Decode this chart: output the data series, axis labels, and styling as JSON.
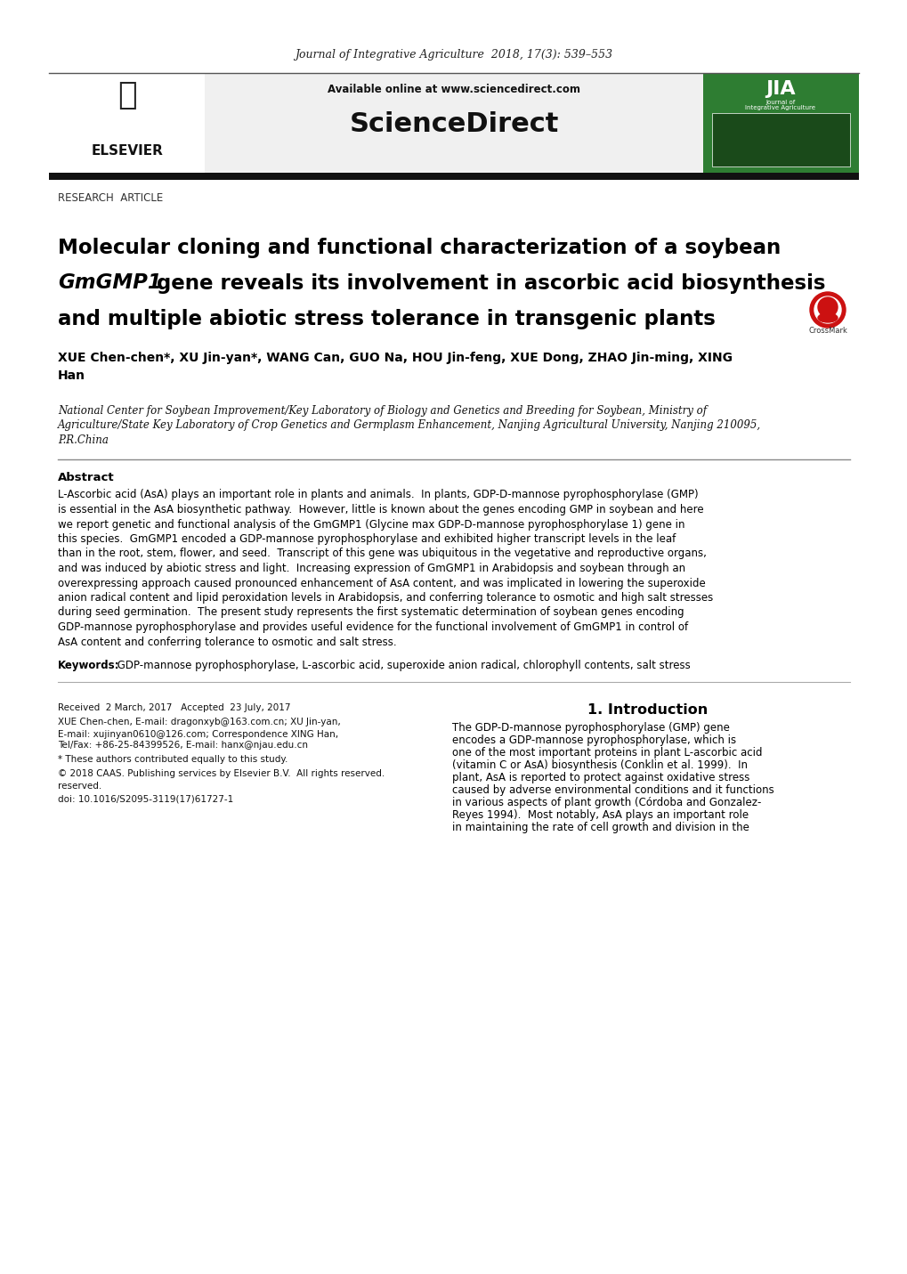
{
  "journal_line": "Journal of Integrative Agriculture  2018, 17(3): 539–553",
  "available_online": "Available online at www.sciencedirect.com",
  "sciencedirect_text": "ScienceDirect",
  "section_label": "RESEARCH  ARTICLE",
  "title_part1": "Molecular cloning and functional characterization of a soybean",
  "title_part2_italic": "GmGMP1",
  "title_part2_rest": " gene reveals its involvement in ascorbic acid biosynthesis",
  "title_part3": "and multiple abiotic stress tolerance in transgenic plants",
  "authors_line1": "XUE Chen-chen*, XU Jin-yan*, WANG Can, GUO Na, HOU Jin-feng, XUE Dong, ZHAO Jin-ming, XING",
  "authors_line2": "Han",
  "affiliation_line1": "National Center for Soybean Improvement/Key Laboratory of Biology and Genetics and Breeding for Soybean, Ministry of",
  "affiliation_line2": "Agriculture/State Key Laboratory of Crop Genetics and Germplasm Enhancement, Nanjing Agricultural University, Nanjing 210095,",
  "affiliation_line3": "P.R.China",
  "abstract_title": "Abstract",
  "abstract_lines": [
    "L-Ascorbic acid (AsA) plays an important role in plants and animals.  In plants, GDP-D-mannose pyrophosphorylase (GMP)",
    "is essential in the AsA biosynthetic pathway.  However, little is known about the genes encoding GMP in soybean and here",
    "we report genetic and functional analysis of the GmGMP1 (Glycine max GDP-D-mannose pyrophosphorylase 1) gene in",
    "this species.  GmGMP1 encoded a GDP-mannose pyrophosphorylase and exhibited higher transcript levels in the leaf",
    "than in the root, stem, flower, and seed.  Transcript of this gene was ubiquitous in the vegetative and reproductive organs,",
    "and was induced by abiotic stress and light.  Increasing expression of GmGMP1 in Arabidopsis and soybean through an",
    "overexpressing approach caused pronounced enhancement of AsA content, and was implicated in lowering the superoxide",
    "anion radical content and lipid peroxidation levels in Arabidopsis, and conferring tolerance to osmotic and high salt stresses",
    "during seed germination.  The present study represents the first systematic determination of soybean genes encoding",
    "GDP-mannose pyrophosphorylase and provides useful evidence for the functional involvement of GmGMP1 in control of",
    "AsA content and conferring tolerance to osmotic and salt stress."
  ],
  "keywords_label": "Keywords:",
  "keywords_text": " GDP-mannose pyrophosphorylase, L-ascorbic acid, superoxide anion radical, chlorophyll contents, salt stress",
  "received": "Received  2 March, 2017   Accepted  23 July, 2017",
  "contact_lines": [
    "XUE Chen-chen, E-mail: dragonxyb@163.com.cn; XU Jin-yan,",
    "E-mail: xujinyan0610@126.com; Correspondence XING Han,",
    "Tel/Fax: +86-25-84399526, E-mail: hanx@njau.edu.cn"
  ],
  "footnote": "* These authors contributed equally to this study.",
  "copyright": "© 2018 CAAS. Publishing services by Elsevier B.V.  All rights reserved.",
  "doi": "doi: 10.1016/S2095-3119(17)61727-1",
  "intro_heading": "1. Introduction",
  "intro_lines": [
    "The GDP-D-mannose pyrophosphorylase (GMP) gene",
    "encodes a GDP-mannose pyrophosphorylase, which is",
    "one of the most important proteins in plant L-ascorbic acid",
    "(vitamin C or AsA) biosynthesis (Conklin et al. 1999).  In",
    "plant, AsA is reported to protect against oxidative stress",
    "caused by adverse environmental conditions and it functions",
    "in various aspects of plant growth (Córdoba and Gonzalez-",
    "Reyes 1994).  Most notably, AsA plays an important role",
    "in maintaining the rate of cell growth and division in the"
  ],
  "bg_color": "#ffffff",
  "header_bg": "#f0f0f0",
  "thick_bar_color": "#1a1a1a",
  "thin_line_color": "#888888",
  "header_bar_green": "#2e7d32"
}
